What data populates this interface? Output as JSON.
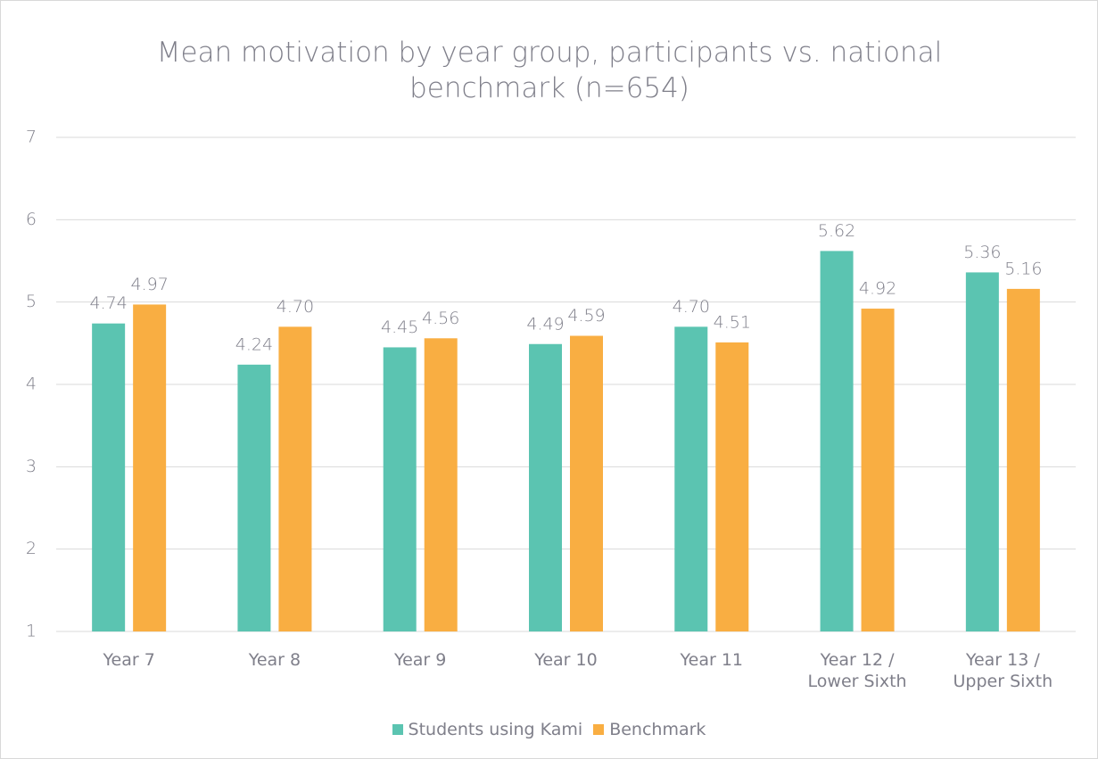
{
  "chart_data": {
    "type": "bar",
    "title": "Mean motivation by year group, participants vs. national benchmark (n=654)",
    "categories": [
      "Year 7",
      "Year 8",
      "Year 9",
      "Year 10",
      "Year 11",
      "Year 12 / Lower Sixth",
      "Year 13 / Upper Sixth"
    ],
    "series": [
      {
        "name": "Students using Kami",
        "color": "#5bc4b1",
        "values": [
          4.74,
          4.24,
          4.45,
          4.49,
          4.7,
          5.62,
          5.36
        ],
        "value_labels": [
          "4.74",
          "4.24",
          "4.45",
          "4.49",
          "4.70",
          "5.62",
          "5.36"
        ]
      },
      {
        "name": "Benchmark",
        "color": "#f9ae42",
        "values": [
          4.97,
          4.7,
          4.56,
          4.59,
          4.51,
          4.92,
          5.16
        ],
        "value_labels": [
          "4.97",
          "4.70",
          "4.56",
          "4.59",
          "4.51",
          "4.92",
          "5.16"
        ]
      }
    ],
    "ylim": [
      1,
      7
    ],
    "yticks": [
      1,
      2,
      3,
      4,
      5,
      6,
      7
    ],
    "grid": true,
    "legend": "bottom"
  }
}
